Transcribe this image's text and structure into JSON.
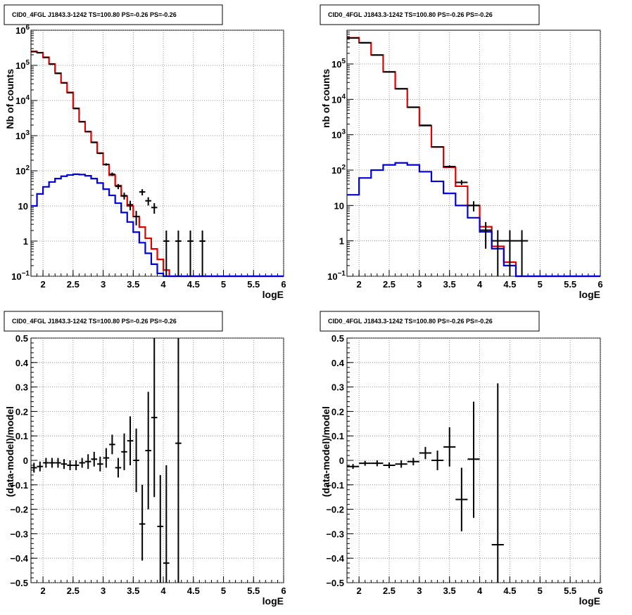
{
  "colors": {
    "data": "#000000",
    "model": "#e00000",
    "source": "#0000dd",
    "grid": "#777777"
  },
  "chart_data": [
    {
      "type": "line",
      "title": "CID0_4FGL J1843.3-1242 TS=100.80 PS=-0.26 PS=-0.26",
      "xlabel": "logE",
      "ylabel": "Nb of counts",
      "yscale": "log",
      "xlim": [
        1.8,
        6.0
      ],
      "ylim": [
        0.1,
        1000000
      ],
      "xticks": [
        "2",
        "2.5",
        "3",
        "3.5",
        "4",
        "4.5",
        "5",
        "5.5",
        "6"
      ],
      "yticks": [
        {
          "v": 0.1,
          "b": "10",
          "e": "−1"
        },
        {
          "v": 1,
          "b": "1",
          "e": ""
        },
        {
          "v": 10,
          "b": "10",
          "e": ""
        },
        {
          "v": 100,
          "b": "10",
          "e": "2"
        },
        {
          "v": 1000,
          "b": "10",
          "e": "3"
        },
        {
          "v": 10000,
          "b": "10",
          "e": "4"
        },
        {
          "v": 100000,
          "b": "10",
          "e": "5"
        },
        {
          "v": 1000000,
          "b": "10",
          "e": "6"
        }
      ],
      "grid": true,
      "bin_edges": [
        1.8,
        1.9,
        2.0,
        2.1,
        2.2,
        2.3,
        2.4,
        2.5,
        2.6,
        2.7,
        2.8,
        2.9,
        3.0,
        3.1,
        3.2,
        3.3,
        3.4,
        3.5,
        3.6,
        3.7,
        3.8,
        3.9,
        4.0,
        4.1,
        4.2,
        4.3,
        4.4,
        4.5,
        4.6,
        4.7,
        4.8,
        4.9,
        5.0,
        5.1,
        5.2,
        5.3,
        5.4,
        5.5,
        5.6,
        5.7,
        5.8,
        5.9,
        6.0
      ],
      "series": [
        {
          "role": "model",
          "color": "#e00000",
          "values": [
            250000,
            230000,
            170000,
            110000,
            60000,
            32000,
            17000,
            6000,
            2500,
            1300,
            650,
            320,
            150,
            75,
            38,
            19,
            10,
            5,
            2.5,
            1.2,
            0.6,
            0.3,
            0.15,
            0.1,
            0.1,
            0.1,
            0.1,
            0.1,
            0.1,
            0.1,
            0.1,
            0.1,
            0.1,
            0.1,
            0.1,
            0.1,
            0.1,
            0.1,
            0.1,
            0.1,
            0.1,
            0.1
          ]
        },
        {
          "role": "source",
          "color": "#0000dd",
          "values": [
            10,
            22,
            35,
            48,
            60,
            70,
            76,
            80,
            78,
            72,
            60,
            45,
            30,
            20,
            12,
            6.5,
            3.5,
            1.8,
            0.9,
            0.45,
            0.22,
            0.12,
            0.1,
            0.1,
            0.1,
            0.1,
            0.1,
            0.1,
            0.1,
            0.1,
            0.1,
            0.1,
            0.1,
            0.1,
            0.1,
            0.1,
            0.1,
            0.1,
            0.1,
            0.1,
            0.1,
            0.1
          ]
        }
      ],
      "points": [
        {
          "x": 1.85,
          "y": 245000,
          "lo": 244000,
          "hi": 246000
        },
        {
          "x": 1.95,
          "y": 228000,
          "lo": 227000,
          "hi": 229000
        },
        {
          "x": 2.05,
          "y": 168000,
          "lo": 167000,
          "hi": 169000
        },
        {
          "x": 2.15,
          "y": 108000,
          "lo": 107000,
          "hi": 109000
        },
        {
          "x": 2.25,
          "y": 59000,
          "lo": 58700,
          "hi": 59300
        },
        {
          "x": 2.35,
          "y": 31500,
          "lo": 31300,
          "hi": 31700
        },
        {
          "x": 2.45,
          "y": 16700,
          "lo": 16550,
          "hi": 16850
        },
        {
          "x": 2.55,
          "y": 5900,
          "lo": 5820,
          "hi": 5980
        },
        {
          "x": 2.65,
          "y": 2480,
          "lo": 2430,
          "hi": 2530
        },
        {
          "x": 2.75,
          "y": 1300,
          "lo": 1260,
          "hi": 1340
        },
        {
          "x": 2.85,
          "y": 640,
          "lo": 615,
          "hi": 665
        },
        {
          "x": 2.95,
          "y": 315,
          "lo": 298,
          "hi": 332
        },
        {
          "x": 3.05,
          "y": 152,
          "lo": 140,
          "hi": 164
        },
        {
          "x": 3.15,
          "y": 80,
          "lo": 71,
          "hi": 89
        },
        {
          "x": 3.25,
          "y": 36,
          "lo": 30,
          "hi": 42
        },
        {
          "x": 3.35,
          "y": 19.6,
          "lo": 15.2,
          "hi": 24
        },
        {
          "x": 3.45,
          "y": 10.8,
          "lo": 7.5,
          "hi": 14
        },
        {
          "x": 3.55,
          "y": 5,
          "lo": 2.8,
          "hi": 7.2
        },
        {
          "x": 3.65,
          "y": 25,
          "lo": 20,
          "hi": 30
        },
        {
          "x": 3.75,
          "y": 14,
          "lo": 10.3,
          "hi": 17.7
        },
        {
          "x": 3.85,
          "y": 9,
          "lo": 6,
          "hi": 12
        },
        {
          "x": 4.05,
          "y": 1,
          "lo": 0.01,
          "hi": 2
        },
        {
          "x": 4.25,
          "y": 1,
          "lo": 0.01,
          "hi": 2
        },
        {
          "x": 4.45,
          "y": 1,
          "lo": 0.01,
          "hi": 2
        },
        {
          "x": 4.65,
          "y": 1,
          "lo": 0.01,
          "hi": 2
        }
      ]
    },
    {
      "type": "line",
      "title": "CID0_4FGL J1843.3-1242 TS=100.80 PS=-0.26 PS=-0.26",
      "xlabel": "logE",
      "ylabel": "nb of counts",
      "yscale": "log",
      "xlim": [
        1.8,
        6.0
      ],
      "ylim": [
        0.1,
        900000
      ],
      "xticks": [
        "2",
        "2.5",
        "3",
        "3.5",
        "4",
        "4.5",
        "5",
        "5.5",
        "6"
      ],
      "yticks": [
        {
          "v": 0.1,
          "b": "10",
          "e": "−1"
        },
        {
          "v": 1,
          "b": "1",
          "e": ""
        },
        {
          "v": 10,
          "b": "10",
          "e": ""
        },
        {
          "v": 100,
          "b": "10",
          "e": "2"
        },
        {
          "v": 1000,
          "b": "10",
          "e": "3"
        },
        {
          "v": 10000,
          "b": "10",
          "e": "4"
        },
        {
          "v": 100000,
          "b": "10",
          "e": "5"
        }
      ],
      "grid": true,
      "bin_edges": [
        1.8,
        2.0,
        2.2,
        2.4,
        2.6,
        2.8,
        3.0,
        3.2,
        3.4,
        3.6,
        3.8,
        4.0,
        4.2,
        4.4,
        4.6,
        4.8,
        5.0,
        5.2,
        5.4,
        5.6,
        5.8,
        6.0
      ],
      "series": [
        {
          "role": "model",
          "color": "#e00000",
          "values": [
            550000,
            400000,
            180000,
            60000,
            20000,
            6000,
            1800,
            450,
            120,
            35,
            10,
            2.5,
            0.7,
            0.25,
            0.1,
            0.1,
            0.1,
            0.1,
            0.1,
            0.1,
            0.1
          ]
        },
        {
          "role": "source",
          "color": "#0000dd",
          "values": [
            20,
            60,
            100,
            140,
            160,
            140,
            90,
            48,
            22,
            10,
            4.5,
            1.8,
            0.6,
            0.2,
            0.1,
            0.1,
            0.1,
            0.1,
            0.1,
            0.1,
            0.1
          ]
        }
      ],
      "points": [
        {
          "x": 1.9,
          "y": 540000,
          "lo": 539000,
          "hi": 541000
        },
        {
          "x": 2.1,
          "y": 395000,
          "lo": 394000,
          "hi": 396000
        },
        {
          "x": 2.3,
          "y": 178000,
          "lo": 177500,
          "hi": 178500
        },
        {
          "x": 2.5,
          "y": 59500,
          "lo": 59250,
          "hi": 59750
        },
        {
          "x": 2.7,
          "y": 19800,
          "lo": 19650,
          "hi": 19950
        },
        {
          "x": 2.9,
          "y": 5980,
          "lo": 5900,
          "hi": 6060
        },
        {
          "x": 3.1,
          "y": 1850,
          "lo": 1807,
          "hi": 1893
        },
        {
          "x": 3.3,
          "y": 452,
          "lo": 431,
          "hi": 473
        },
        {
          "x": 3.5,
          "y": 126,
          "lo": 115,
          "hi": 137
        },
        {
          "x": 3.7,
          "y": 45,
          "lo": 38,
          "hi": 52
        },
        {
          "x": 3.9,
          "y": 10,
          "lo": 6.8,
          "hi": 13.2
        },
        {
          "x": 4.1,
          "y": 2,
          "lo": 0.6,
          "hi": 3.4
        },
        {
          "x": 4.3,
          "y": 1,
          "lo": 0.01,
          "hi": 2
        },
        {
          "x": 4.5,
          "y": 1,
          "lo": 0.01,
          "hi": 2
        },
        {
          "x": 4.7,
          "y": 1,
          "lo": 0.01,
          "hi": 2
        }
      ]
    },
    {
      "type": "scatter",
      "title": "CID0_4FGL J1843.3-1242 TS=100.80 PS=-0.26 PS=-0.26",
      "xlabel": "logE",
      "ylabel": "(data-model)/model",
      "yscale": "linear",
      "xlim": [
        1.8,
        6.0
      ],
      "ylim": [
        -0.5,
        0.5
      ],
      "xticks": [
        "2",
        "2.5",
        "3",
        "3.5",
        "4",
        "4.5",
        "5",
        "5.5",
        "6"
      ],
      "yticks": [
        {
          "v": -0.5,
          "t": "−0.5"
        },
        {
          "v": -0.4,
          "t": "−0.4"
        },
        {
          "v": -0.3,
          "t": "−0.3"
        },
        {
          "v": -0.2,
          "t": "−0.2"
        },
        {
          "v": -0.1,
          "t": "−0.1"
        },
        {
          "v": 0,
          "t": "0"
        },
        {
          "v": 0.1,
          "t": "0.1"
        },
        {
          "v": 0.2,
          "t": "0.2"
        },
        {
          "v": 0.3,
          "t": "0.3"
        },
        {
          "v": 0.4,
          "t": "0.4"
        },
        {
          "v": 0.5,
          "t": "0.5"
        }
      ],
      "grid": true,
      "xerr": 0.05,
      "points": [
        {
          "x": 1.85,
          "y": -0.03,
          "lo": -0.05,
          "hi": -0.01
        },
        {
          "x": 1.95,
          "y": -0.025,
          "lo": -0.045,
          "hi": -0.005
        },
        {
          "x": 2.05,
          "y": -0.01,
          "lo": -0.03,
          "hi": 0.01
        },
        {
          "x": 2.15,
          "y": -0.01,
          "lo": -0.03,
          "hi": 0.01
        },
        {
          "x": 2.25,
          "y": -0.01,
          "lo": -0.03,
          "hi": 0.01
        },
        {
          "x": 2.35,
          "y": -0.015,
          "lo": -0.035,
          "hi": 0.005
        },
        {
          "x": 2.45,
          "y": -0.02,
          "lo": -0.04,
          "hi": 0.0
        },
        {
          "x": 2.55,
          "y": -0.02,
          "lo": -0.04,
          "hi": 0.0
        },
        {
          "x": 2.65,
          "y": -0.01,
          "lo": -0.03,
          "hi": 0.01
        },
        {
          "x": 2.75,
          "y": -0.005,
          "lo": -0.035,
          "hi": 0.025
        },
        {
          "x": 2.85,
          "y": 0.005,
          "lo": -0.025,
          "hi": 0.035
        },
        {
          "x": 2.95,
          "y": -0.015,
          "lo": -0.045,
          "hi": 0.015
        },
        {
          "x": 3.05,
          "y": 0.01,
          "lo": -0.03,
          "hi": 0.05
        },
        {
          "x": 3.15,
          "y": 0.065,
          "lo": 0.025,
          "hi": 0.105
        },
        {
          "x": 3.25,
          "y": -0.03,
          "lo": -0.07,
          "hi": 0.01
        },
        {
          "x": 3.35,
          "y": 0.035,
          "lo": -0.04,
          "hi": 0.11
        },
        {
          "x": 3.45,
          "y": 0.08,
          "lo": -0.02,
          "hi": 0.18
        },
        {
          "x": 3.55,
          "y": 0.0,
          "lo": -0.13,
          "hi": 0.13
        },
        {
          "x": 3.65,
          "y": -0.26,
          "lo": -0.41,
          "hi": -0.1
        },
        {
          "x": 3.75,
          "y": 0.04,
          "lo": -0.2,
          "hi": 0.28
        },
        {
          "x": 3.85,
          "y": 0.175,
          "lo": -0.15,
          "hi": 0.5
        },
        {
          "x": 3.95,
          "y": -0.27,
          "lo": -0.5,
          "hi": -0.06
        },
        {
          "x": 4.05,
          "y": -0.42,
          "lo": -0.5,
          "hi": -0.02
        },
        {
          "x": 4.25,
          "y": 0.07,
          "lo": -0.5,
          "hi": 0.5
        }
      ]
    },
    {
      "type": "scatter",
      "title": "CID0_4FGL J1843.3-1242 TS=100.80 PS=-0.26 PS=-0.26",
      "xlabel": "logE",
      "ylabel": "(data-model)/model",
      "yscale": "linear",
      "xlim": [
        1.8,
        6.0
      ],
      "ylim": [
        -0.5,
        0.5
      ],
      "xticks": [
        "2",
        "2.5",
        "3",
        "3.5",
        "4",
        "4.5",
        "5",
        "5.5",
        "6"
      ],
      "yticks": [
        {
          "v": -0.5,
          "t": "−0.5"
        },
        {
          "v": -0.4,
          "t": "−0.4"
        },
        {
          "v": -0.3,
          "t": "−0.3"
        },
        {
          "v": -0.2,
          "t": "−0.2"
        },
        {
          "v": -0.1,
          "t": "−0.1"
        },
        {
          "v": 0,
          "t": "0"
        },
        {
          "v": 0.1,
          "t": "0.1"
        },
        {
          "v": 0.2,
          "t": "0.2"
        },
        {
          "v": 0.3,
          "t": "0.3"
        },
        {
          "v": 0.4,
          "t": "0.4"
        },
        {
          "v": 0.5,
          "t": "0.5"
        }
      ],
      "grid": true,
      "xerr": 0.1,
      "points": [
        {
          "x": 1.9,
          "y": -0.025,
          "lo": -0.035,
          "hi": -0.015
        },
        {
          "x": 2.1,
          "y": -0.012,
          "lo": -0.022,
          "hi": -0.002
        },
        {
          "x": 2.3,
          "y": -0.012,
          "lo": -0.024,
          "hi": 0.0
        },
        {
          "x": 2.5,
          "y": -0.02,
          "lo": -0.032,
          "hi": -0.008
        },
        {
          "x": 2.7,
          "y": -0.015,
          "lo": -0.03,
          "hi": 0.0
        },
        {
          "x": 2.9,
          "y": -0.005,
          "lo": -0.02,
          "hi": 0.01
        },
        {
          "x": 3.1,
          "y": 0.03,
          "lo": 0.005,
          "hi": 0.055
        },
        {
          "x": 3.3,
          "y": 0.0,
          "lo": -0.04,
          "hi": 0.04
        },
        {
          "x": 3.5,
          "y": 0.055,
          "lo": -0.025,
          "hi": 0.135
        },
        {
          "x": 3.7,
          "y": -0.16,
          "lo": -0.29,
          "hi": -0.03
        },
        {
          "x": 3.9,
          "y": 0.005,
          "lo": -0.235,
          "hi": 0.24
        },
        {
          "x": 4.3,
          "y": -0.345,
          "lo": -0.5,
          "hi": 0.315
        }
      ]
    }
  ]
}
